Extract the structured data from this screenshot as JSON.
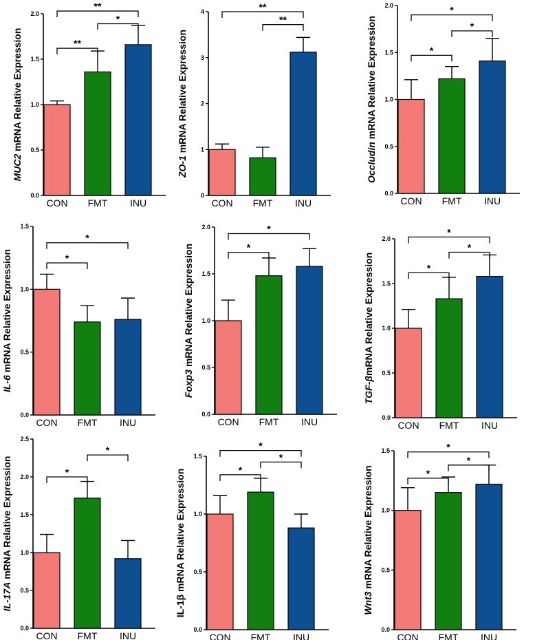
{
  "colors": {
    "CON": "#f47a78",
    "FMT": "#118011",
    "INU": "#0d4f91",
    "axis": "#000000"
  },
  "chart_data": [
    {
      "type": "bar",
      "gene": "MUC2",
      "gene_italic": true,
      "ylabel_rest": " mRNA Relative Expression",
      "categories": [
        "CON",
        "FMT",
        "INU"
      ],
      "values": [
        1.0,
        1.36,
        1.66
      ],
      "errors": [
        0.04,
        0.23,
        0.21
      ],
      "ylim": [
        0,
        2.0
      ],
      "ticks": [
        "0.0",
        "0.5",
        "1.0",
        "1.5",
        "2.0"
      ],
      "tick_values": [
        0,
        0.5,
        1.0,
        1.5,
        2.0
      ],
      "significance": [
        {
          "from": 0,
          "to": 1,
          "label": "**",
          "level": 1.62
        },
        {
          "from": 1,
          "to": 2,
          "label": "*",
          "level": 1.89
        },
        {
          "from": 0,
          "to": 2,
          "label": "**",
          "level": 2.03
        }
      ]
    },
    {
      "type": "bar",
      "gene": "ZO-1",
      "gene_italic": true,
      "ylabel_rest": " mRNA Relative Expression",
      "categories": [
        "CON",
        "FMT",
        "INU"
      ],
      "values": [
        1.0,
        0.82,
        3.12
      ],
      "errors": [
        0.12,
        0.23,
        0.32
      ],
      "ylim": [
        0,
        4
      ],
      "ticks": [
        "0",
        "1",
        "2",
        "3",
        "4"
      ],
      "tick_values": [
        0,
        1,
        2,
        3,
        4
      ],
      "significance": [
        {
          "from": 1,
          "to": 2,
          "label": "**",
          "level": 3.72
        },
        {
          "from": 0,
          "to": 2,
          "label": "**",
          "level": 4.0
        }
      ]
    },
    {
      "type": "bar",
      "gene": "Occludin",
      "gene_italic": true,
      "ylabel_rest": " mRNA Relative Expression",
      "categories": [
        "CON",
        "FMT",
        "INU"
      ],
      "values": [
        1.0,
        1.22,
        1.41
      ],
      "errors": [
        0.21,
        0.13,
        0.24
      ],
      "ylim": [
        0,
        2.0
      ],
      "ticks": [
        "0.0",
        "0.5",
        "1.0",
        "1.5",
        "2.0"
      ],
      "tick_values": [
        0,
        0.5,
        1.0,
        1.5,
        2.0
      ],
      "significance": [
        {
          "from": 0,
          "to": 1,
          "label": "*",
          "level": 1.47
        },
        {
          "from": 1,
          "to": 2,
          "label": "*",
          "level": 1.73
        },
        {
          "from": 0,
          "to": 2,
          "label": "*",
          "level": 1.9
        }
      ]
    },
    {
      "type": "bar",
      "gene": "IL-6",
      "gene_italic": true,
      "ylabel_rest": " mRNA Relative Expression",
      "categories": [
        "CON",
        "FMT",
        "INU"
      ],
      "values": [
        1.0,
        0.74,
        0.76
      ],
      "errors": [
        0.12,
        0.13,
        0.17
      ],
      "ylim": [
        0,
        1.5
      ],
      "ticks": [
        "0.0",
        "0.5",
        "1.0",
        "1.5"
      ],
      "tick_values": [
        0,
        0.5,
        1.0,
        1.5
      ],
      "significance": [
        {
          "from": 0,
          "to": 1,
          "label": "*",
          "level": 1.21
        },
        {
          "from": 0,
          "to": 2,
          "label": "*",
          "level": 1.37
        }
      ]
    },
    {
      "type": "bar",
      "gene": "Foxp3",
      "gene_italic": true,
      "ylabel_rest": " mRNA Relative Expression",
      "categories": [
        "CON",
        "FMT",
        "INU"
      ],
      "values": [
        1.0,
        1.48,
        1.58
      ],
      "errors": [
        0.22,
        0.19,
        0.19
      ],
      "ylim": [
        0,
        2.0
      ],
      "ticks": [
        "0.0",
        "0.5",
        "1.0",
        "1.5",
        "2.0"
      ],
      "tick_values": [
        0,
        0.5,
        1.0,
        1.5,
        2.0
      ],
      "significance": [
        {
          "from": 0,
          "to": 1,
          "label": "*",
          "level": 1.73
        },
        {
          "from": 0,
          "to": 2,
          "label": "*",
          "level": 1.93
        }
      ]
    },
    {
      "type": "bar",
      "gene": "TGF-β",
      "gene_italic": true,
      "ylabel_rest": "mRNA Relative Expression",
      "categories": [
        "CON",
        "FMT",
        "INU"
      ],
      "values": [
        1.0,
        1.33,
        1.58
      ],
      "errors": [
        0.21,
        0.24,
        0.24
      ],
      "ylim": [
        0,
        2.0
      ],
      "ticks": [
        "0.0",
        "0.5",
        "1.0",
        "1.5",
        "2.0"
      ],
      "tick_values": [
        0,
        0.5,
        1.0,
        1.5,
        2.0
      ],
      "significance": [
        {
          "from": 0,
          "to": 1,
          "label": "*",
          "level": 1.62
        },
        {
          "from": 1,
          "to": 2,
          "label": "*",
          "level": 1.85
        },
        {
          "from": 0,
          "to": 2,
          "label": "*",
          "level": 2.02
        }
      ]
    },
    {
      "type": "bar",
      "gene": "IL-17A",
      "gene_italic": true,
      "ylabel_rest": " mRNA Relative Expression",
      "categories": [
        "CON",
        "FMT",
        "INU"
      ],
      "values": [
        1.0,
        1.72,
        0.92
      ],
      "errors": [
        0.24,
        0.22,
        0.24
      ],
      "ylim": [
        0,
        2.5
      ],
      "ticks": [
        "0.0",
        "0.5",
        "1.0",
        "1.5",
        "2.0",
        "2.5"
      ],
      "tick_values": [
        0,
        0.5,
        1.0,
        1.5,
        2.0,
        2.5
      ],
      "significance": [
        {
          "from": 0,
          "to": 1,
          "label": "*",
          "level": 2.0
        },
        {
          "from": 1,
          "to": 2,
          "label": "*",
          "level": 2.29
        }
      ]
    },
    {
      "type": "bar",
      "gene": "IL-1β",
      "gene_italic": false,
      "ylabel_rest": " mRNA Relative Expression",
      "categories": [
        "CON",
        "FMT",
        "INU"
      ],
      "values": [
        1.0,
        1.19,
        0.88
      ],
      "errors": [
        0.16,
        0.12,
        0.12
      ],
      "ylim": [
        0,
        1.5
      ],
      "ticks": [
        "0.0",
        "0.5",
        "1.0",
        "1.5"
      ],
      "tick_values": [
        0,
        0.5,
        1.0,
        1.5
      ],
      "significance": [
        {
          "from": 0,
          "to": 1,
          "label": "*",
          "level": 1.34
        },
        {
          "from": 1,
          "to": 2,
          "label": "*",
          "level": 1.45
        },
        {
          "from": 0,
          "to": 2,
          "label": "*",
          "level": 1.55
        }
      ]
    },
    {
      "type": "bar",
      "gene": "Wnt3",
      "gene_italic": true,
      "ylabel_rest": " mRNA Relative Expression",
      "categories": [
        "CON",
        "FMT",
        "INU"
      ],
      "values": [
        1.0,
        1.15,
        1.22
      ],
      "errors": [
        0.19,
        0.13,
        0.16
      ],
      "ylim": [
        0,
        1.5
      ],
      "ticks": [
        "0.0",
        "0.5",
        "1.0",
        "1.5"
      ],
      "tick_values": [
        0,
        0.5,
        1.0,
        1.5
      ],
      "significance": [
        {
          "from": 0,
          "to": 1,
          "label": "*",
          "level": 1.27
        },
        {
          "from": 1,
          "to": 2,
          "label": "*",
          "level": 1.38
        },
        {
          "from": 0,
          "to": 2,
          "label": "*",
          "level": 1.49
        }
      ]
    }
  ]
}
